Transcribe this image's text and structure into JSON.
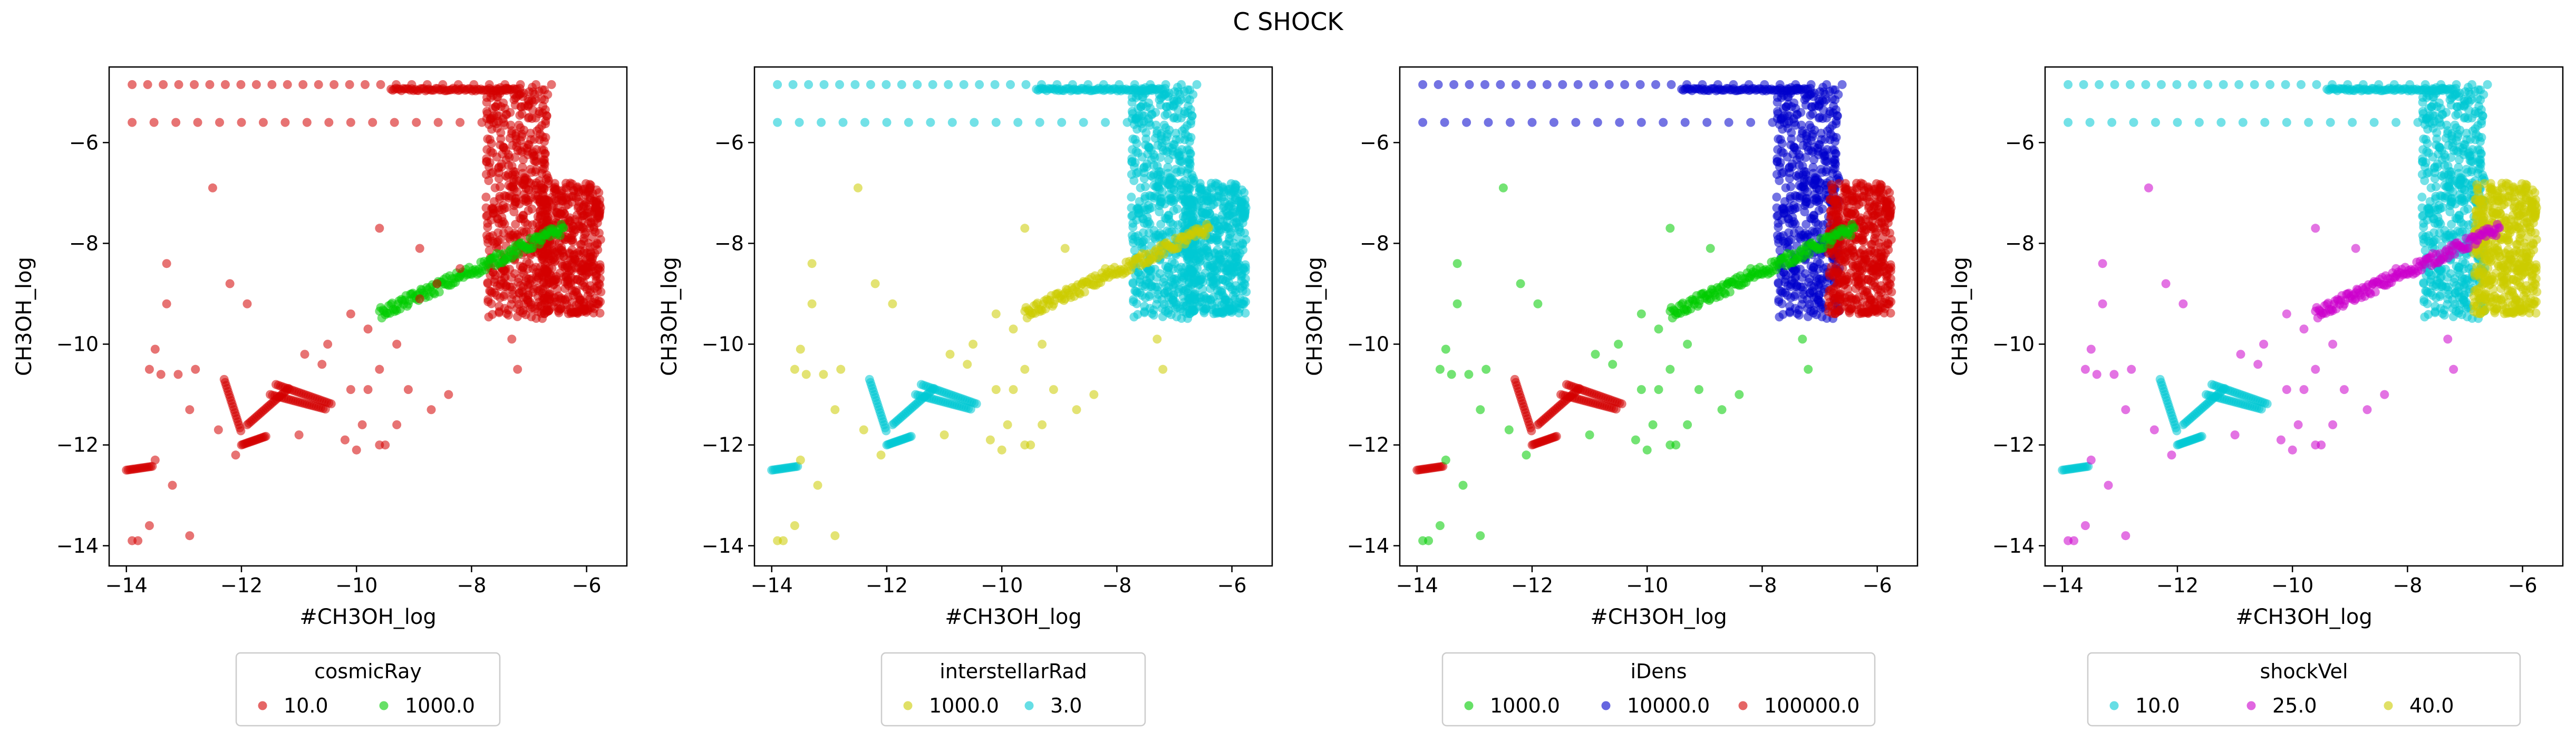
{
  "figure": {
    "title": "C SHOCK"
  },
  "colors": {
    "red": "#d40000",
    "green": "#00cc00",
    "yellow": "#cccc00",
    "cyan": "#00c8d4",
    "blue": "#0000cc",
    "magenta": "#cc00cc"
  },
  "chart_data": [
    {
      "type": "scatter",
      "xlabel": "#CH3OH_log",
      "ylabel": "CH3OH_log",
      "xlim": [
        -14.3,
        -5.3
      ],
      "ylim": [
        -14.4,
        -4.5
      ],
      "xticks": [
        -14,
        -12,
        -10,
        -8,
        -6
      ],
      "yticks": [
        -14,
        -12,
        -10,
        -8,
        -6
      ],
      "legend": {
        "title": "cosmicRay",
        "position": "bottom-center"
      },
      "series": [
        {
          "name": "10.0",
          "color": "#d40000"
        },
        {
          "name": "1000.0",
          "color": "#00cc00"
        }
      ]
    },
    {
      "type": "scatter",
      "xlabel": "#CH3OH_log",
      "ylabel": "CH3OH_log",
      "xlim": [
        -14.3,
        -5.3
      ],
      "ylim": [
        -14.4,
        -4.5
      ],
      "xticks": [
        -14,
        -12,
        -10,
        -8,
        -6
      ],
      "yticks": [
        -14,
        -12,
        -10,
        -8,
        -6
      ],
      "legend": {
        "title": "interstellarRad",
        "position": "bottom-center"
      },
      "series": [
        {
          "name": "1000.0",
          "color": "#cccc00"
        },
        {
          "name": "3.0",
          "color": "#00c8d4"
        }
      ]
    },
    {
      "type": "scatter",
      "xlabel": "#CH3OH_log",
      "ylabel": "CH3OH_log",
      "xlim": [
        -14.3,
        -5.3
      ],
      "ylim": [
        -14.4,
        -4.5
      ],
      "xticks": [
        -14,
        -12,
        -10,
        -8,
        -6
      ],
      "yticks": [
        -14,
        -12,
        -10,
        -8,
        -6
      ],
      "legend": {
        "title": "iDens",
        "position": "bottom-center"
      },
      "series": [
        {
          "name": "1000.0",
          "color": "#00cc00"
        },
        {
          "name": "10000.0",
          "color": "#0000cc"
        },
        {
          "name": "100000.0",
          "color": "#d40000"
        }
      ]
    },
    {
      "type": "scatter",
      "xlabel": "#CH3OH_log",
      "ylabel": "CH3OH_log",
      "xlim": [
        -14.3,
        -5.3
      ],
      "ylim": [
        -14.4,
        -4.5
      ],
      "xticks": [
        -14,
        -12,
        -10,
        -8,
        -6
      ],
      "yticks": [
        -14,
        -12,
        -10,
        -8,
        -6
      ],
      "legend": {
        "title": "shockVel",
        "position": "bottom-center"
      },
      "series": [
        {
          "name": "10.0",
          "color": "#00c8d4"
        },
        {
          "name": "25.0",
          "color": "#cc00cc"
        },
        {
          "name": "40.0",
          "color": "#cccc00"
        }
      ]
    }
  ]
}
